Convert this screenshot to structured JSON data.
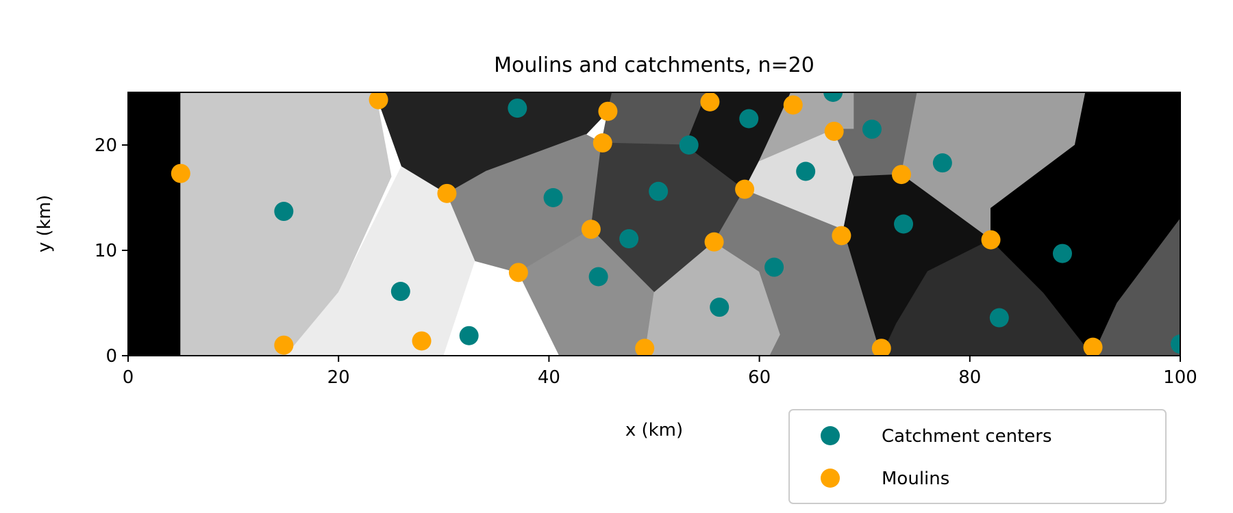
{
  "chart_data": {
    "type": "scatter",
    "title": "Moulins and catchments, n=20",
    "xlabel": "x (km)",
    "ylabel": "y (km)",
    "xlim": [
      0,
      100
    ],
    "ylim": [
      0,
      25
    ],
    "xticks": [
      "0",
      "20",
      "40",
      "60",
      "80",
      "100"
    ],
    "yticks": [
      "0",
      "10",
      "20"
    ],
    "legend_position": "lower-right, below plot",
    "background": "grayscale catchment map",
    "series": [
      {
        "name": "Catchment centers",
        "color": "#008080",
        "points": [
          {
            "x": 37.0,
            "y": 23.5
          },
          {
            "x": 59.0,
            "y": 22.5
          },
          {
            "x": 67.0,
            "y": 25.0
          },
          {
            "x": 70.7,
            "y": 21.5
          },
          {
            "x": 53.3,
            "y": 20.0
          },
          {
            "x": 77.4,
            "y": 18.3
          },
          {
            "x": 64.4,
            "y": 17.5
          },
          {
            "x": 50.4,
            "y": 15.6
          },
          {
            "x": 40.4,
            "y": 15.0
          },
          {
            "x": 14.8,
            "y": 13.7
          },
          {
            "x": 73.7,
            "y": 12.5
          },
          {
            "x": 47.6,
            "y": 11.1
          },
          {
            "x": 88.8,
            "y": 9.7
          },
          {
            "x": 61.4,
            "y": 8.4
          },
          {
            "x": 44.7,
            "y": 7.5
          },
          {
            "x": 25.9,
            "y": 6.1
          },
          {
            "x": 56.2,
            "y": 4.6
          },
          {
            "x": 82.8,
            "y": 3.6
          },
          {
            "x": 32.4,
            "y": 1.9
          },
          {
            "x": 100.0,
            "y": 1.1
          }
        ]
      },
      {
        "name": "Moulins",
        "color": "#ffa500",
        "points": [
          {
            "x": 23.8,
            "y": 24.3
          },
          {
            "x": 55.3,
            "y": 24.1
          },
          {
            "x": 63.2,
            "y": 23.8
          },
          {
            "x": 45.6,
            "y": 23.2
          },
          {
            "x": 67.1,
            "y": 21.3
          },
          {
            "x": 45.1,
            "y": 20.2
          },
          {
            "x": 5.0,
            "y": 17.3
          },
          {
            "x": 73.5,
            "y": 17.2
          },
          {
            "x": 58.6,
            "y": 15.8
          },
          {
            "x": 30.3,
            "y": 15.4
          },
          {
            "x": 67.8,
            "y": 11.4
          },
          {
            "x": 82.0,
            "y": 11.0
          },
          {
            "x": 55.7,
            "y": 10.8
          },
          {
            "x": 44.0,
            "y": 12.0
          },
          {
            "x": 37.1,
            "y": 7.9
          },
          {
            "x": 14.8,
            "y": 1.0
          },
          {
            "x": 27.9,
            "y": 1.4
          },
          {
            "x": 49.1,
            "y": 0.7
          },
          {
            "x": 71.6,
            "y": 0.7
          },
          {
            "x": 91.7,
            "y": 0.8
          }
        ]
      }
    ],
    "regions": [
      {
        "points": [
          [
            0,
            0
          ],
          [
            5,
            0
          ],
          [
            5,
            25
          ],
          [
            0,
            25
          ]
        ],
        "shade": "#000000"
      },
      {
        "points": [
          [
            5,
            0
          ],
          [
            15,
            0
          ],
          [
            20,
            6
          ],
          [
            25,
            17
          ],
          [
            23.5,
            25
          ],
          [
            5,
            25
          ]
        ],
        "shade": "#c9c9c9"
      },
      {
        "points": [
          [
            15,
            0
          ],
          [
            30,
            0
          ],
          [
            33,
            9
          ],
          [
            30.3,
            15.4
          ],
          [
            26,
            18
          ],
          [
            20,
            6
          ]
        ],
        "shade": "#ececec"
      },
      {
        "points": [
          [
            30,
            0
          ],
          [
            41,
            0
          ],
          [
            37,
            8
          ],
          [
            33,
            9
          ]
        ],
        "shade": "#ffffff"
      },
      {
        "points": [
          [
            23.5,
            25
          ],
          [
            46,
            25
          ],
          [
            45.6,
            23.2
          ],
          [
            43.5,
            21
          ],
          [
            34,
            17.5
          ],
          [
            30.3,
            15.4
          ],
          [
            26,
            18
          ]
        ],
        "shade": "#222222"
      },
      {
        "points": [
          [
            46,
            25
          ],
          [
            55,
            25
          ],
          [
            53,
            20
          ],
          [
            45,
            20.2
          ],
          [
            45.6,
            23.2
          ]
        ],
        "shade": "#555555"
      },
      {
        "points": [
          [
            30.3,
            15.4
          ],
          [
            34,
            17.5
          ],
          [
            43.5,
            21
          ],
          [
            45,
            20.2
          ],
          [
            44,
            12
          ],
          [
            37.1,
            7.9
          ],
          [
            33,
            9
          ]
        ],
        "shade": "#858585"
      },
      {
        "points": [
          [
            45,
            20.2
          ],
          [
            53,
            20
          ],
          [
            58.6,
            15.8
          ],
          [
            55.7,
            10.8
          ],
          [
            50,
            6
          ],
          [
            44,
            12
          ]
        ],
        "shade": "#3a3a3a"
      },
      {
        "points": [
          [
            37.1,
            7.9
          ],
          [
            44,
            12
          ],
          [
            50,
            6
          ],
          [
            49.1,
            0
          ],
          [
            41,
            0
          ]
        ],
        "shade": "#8f8f8f"
      },
      {
        "points": [
          [
            55,
            25
          ],
          [
            63,
            25
          ],
          [
            60,
            18.5
          ],
          [
            58.6,
            15.8
          ],
          [
            53,
            20
          ]
        ],
        "shade": "#151515"
      },
      {
        "points": [
          [
            50,
            6
          ],
          [
            55.7,
            10.8
          ],
          [
            60,
            8
          ],
          [
            62,
            2
          ],
          [
            61,
            0
          ],
          [
            49.1,
            0
          ]
        ],
        "shade": "#b5b5b5"
      },
      {
        "points": [
          [
            55.7,
            10.8
          ],
          [
            58.6,
            15.8
          ],
          [
            68,
            12
          ],
          [
            71.6,
            0
          ],
          [
            61,
            0
          ],
          [
            62,
            2
          ],
          [
            60,
            8
          ]
        ],
        "shade": "#7a7a7a"
      },
      {
        "points": [
          [
            58.6,
            15.8
          ],
          [
            60,
            18.5
          ],
          [
            67,
            21.5
          ],
          [
            69,
            17
          ],
          [
            68,
            12
          ]
        ],
        "shade": "#dddddd"
      },
      {
        "points": [
          [
            63,
            25
          ],
          [
            69,
            25
          ],
          [
            69,
            21.5
          ],
          [
            67,
            21.5
          ],
          [
            60,
            18.5
          ]
        ],
        "shade": "#a8a8a8"
      },
      {
        "points": [
          [
            69,
            25
          ],
          [
            75,
            25
          ],
          [
            73.5,
            17.2
          ],
          [
            69,
            17
          ],
          [
            67,
            21.5
          ],
          [
            69,
            21.5
          ]
        ],
        "shade": "#6a6a6a"
      },
      {
        "points": [
          [
            75,
            25
          ],
          [
            91,
            25
          ],
          [
            90,
            20
          ],
          [
            82,
            14
          ],
          [
            82,
            11
          ],
          [
            73.5,
            17.2
          ]
        ],
        "shade": "#9e9e9e"
      },
      {
        "points": [
          [
            68,
            12
          ],
          [
            69,
            17
          ],
          [
            73.5,
            17.2
          ],
          [
            82,
            11
          ],
          [
            76,
            8
          ],
          [
            73,
            3
          ],
          [
            71.6,
            0
          ]
        ],
        "shade": "#111111"
      },
      {
        "points": [
          [
            71.6,
            0
          ],
          [
            73,
            3
          ],
          [
            76,
            8
          ],
          [
            82,
            11
          ],
          [
            87,
            6
          ],
          [
            91.7,
            0
          ]
        ],
        "shade": "#2d2d2d"
      },
      {
        "points": [
          [
            91,
            25
          ],
          [
            100,
            25
          ],
          [
            100,
            13
          ],
          [
            94,
            5
          ],
          [
            91.7,
            0
          ],
          [
            87,
            6
          ],
          [
            82,
            11
          ],
          [
            82,
            14
          ],
          [
            90,
            20
          ]
        ],
        "shade": "#000000"
      },
      {
        "points": [
          [
            91.7,
            0
          ],
          [
            94,
            5
          ],
          [
            100,
            13
          ],
          [
            100,
            0
          ]
        ],
        "shade": "#555555"
      }
    ]
  },
  "legend": {
    "items": [
      {
        "label": "Catchment centers",
        "color": "#008080"
      },
      {
        "label": "Moulins",
        "color": "#ffa500"
      }
    ]
  }
}
